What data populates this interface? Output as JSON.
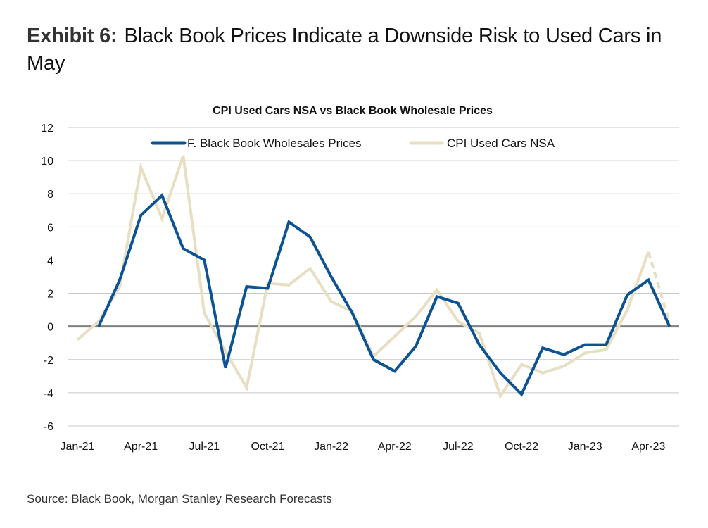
{
  "header": {
    "exhibit_label": "Exhibit 6:",
    "title": "Black Book Prices Indicate a Downside Risk to Used Cars in May"
  },
  "footer": {
    "source": "Source: Black Book, Morgan Stanley Research Forecasts"
  },
  "colors": {
    "black_book": "#0b5394",
    "cpi": "#e8dfc3",
    "zero_line": "#808080",
    "grid": "#c8c8c8"
  },
  "chart_data": {
    "type": "line",
    "title": "CPI Used Cars NSA vs Black Book Wholesale Prices",
    "xlabel": "",
    "ylabel": "",
    "ylim": [
      -6,
      12
    ],
    "yticks": [
      -6,
      -4,
      -2,
      0,
      2,
      4,
      6,
      8,
      10,
      12
    ],
    "grid": true,
    "legend_position": "top",
    "x": [
      "Jan-21",
      "Feb-21",
      "Mar-21",
      "Apr-21",
      "May-21",
      "Jun-21",
      "Jul-21",
      "Aug-21",
      "Sep-21",
      "Oct-21",
      "Nov-21",
      "Dec-21",
      "Jan-22",
      "Feb-22",
      "Mar-22",
      "Apr-22",
      "May-22",
      "Jun-22",
      "Jul-22",
      "Aug-22",
      "Sep-22",
      "Oct-22",
      "Nov-22",
      "Dec-22",
      "Jan-23",
      "Feb-23",
      "Mar-23",
      "Apr-23",
      "May-23"
    ],
    "xtick_labels": [
      "Jan-21",
      "Apr-21",
      "Jul-21",
      "Oct-21",
      "Jan-22",
      "Apr-22",
      "Jul-22",
      "Oct-22",
      "Jan-23",
      "Apr-23"
    ],
    "series": [
      {
        "name": "F. Black Book Wholesales Prices",
        "color": "#0b5394",
        "values": [
          null,
          0.0,
          2.8,
          6.7,
          7.9,
          4.7,
          4.0,
          -2.5,
          2.4,
          2.3,
          6.3,
          5.4,
          3.0,
          0.8,
          -2.0,
          -2.7,
          -1.2,
          1.8,
          1.4,
          -1.1,
          -2.8,
          -4.1,
          -1.3,
          -1.7,
          -1.1,
          -1.1,
          1.9,
          2.8,
          0.0
        ],
        "forecast_from_index": null
      },
      {
        "name": "CPI Used Cars NSA",
        "color": "#e8dfc3",
        "values": [
          -0.8,
          0.3,
          2.4,
          9.6,
          6.5,
          10.3,
          0.8,
          -1.5,
          -3.7,
          2.6,
          2.5,
          3.5,
          1.5,
          0.9,
          -1.8,
          -0.6,
          0.6,
          2.2,
          0.3,
          -0.4,
          -4.2,
          -2.3,
          -2.8,
          -2.4,
          -1.6,
          -1.4,
          1.0,
          4.5,
          0.2
        ],
        "forecast_from_index": 27
      }
    ]
  }
}
